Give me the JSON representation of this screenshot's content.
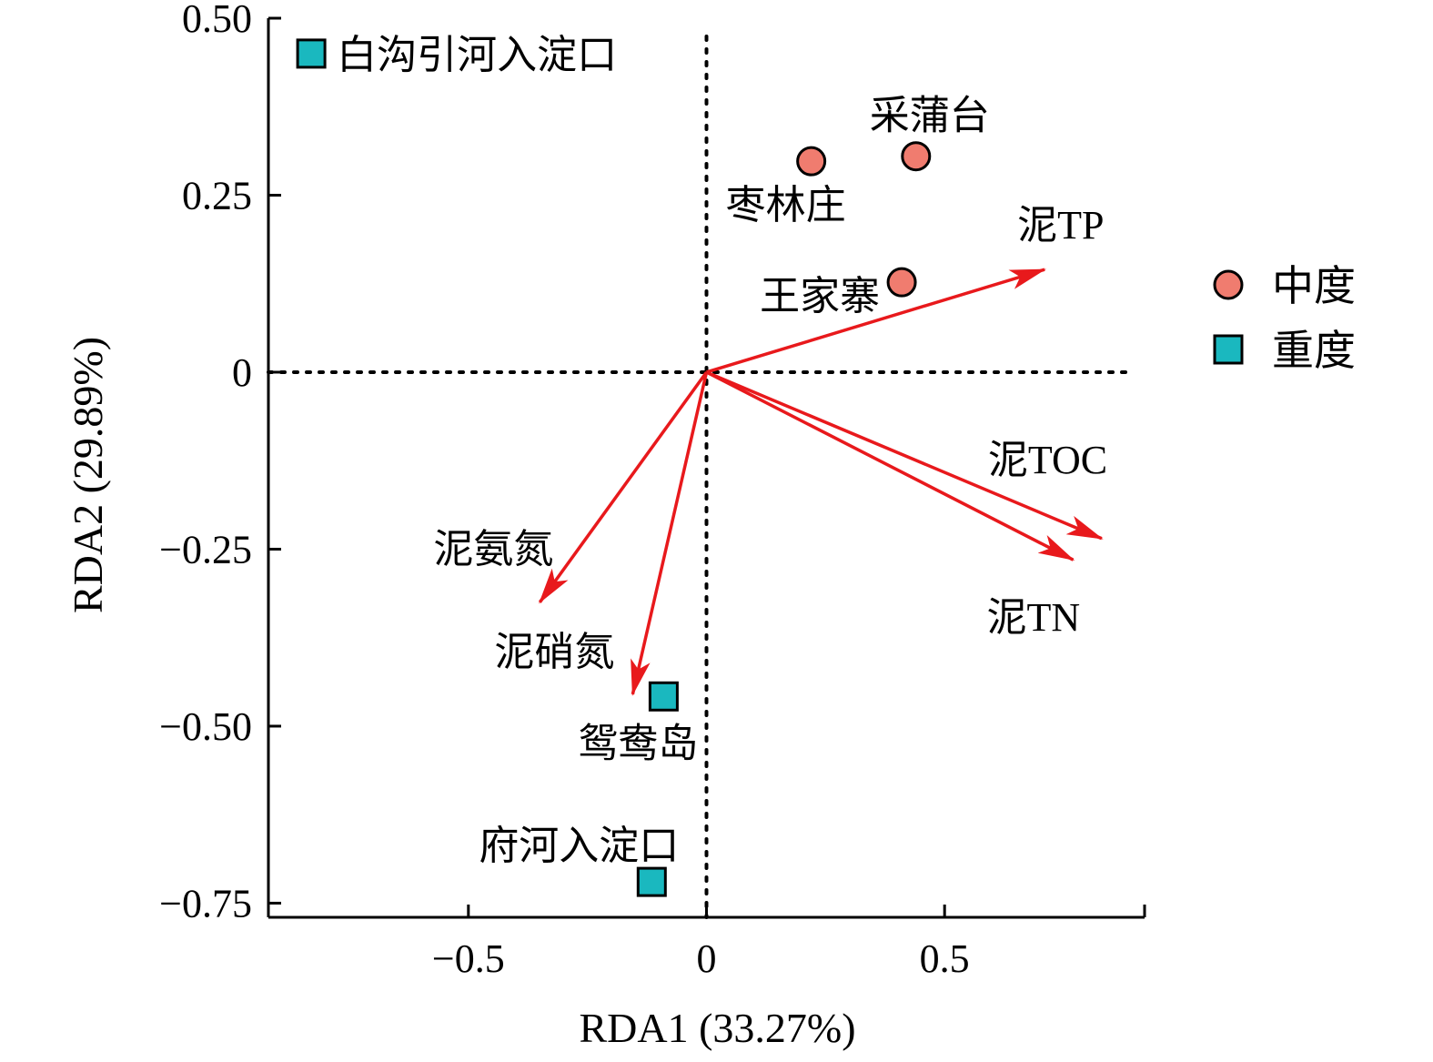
{
  "chart_data": {
    "type": "scatter",
    "subtype": "rda-biplot",
    "xlabel": "RDA1 (33.27%)",
    "ylabel": "RDA2 (29.89%)",
    "xlim": [
      -0.92,
      0.92
    ],
    "ylim": [
      -0.77,
      0.5
    ],
    "x_ticks": [
      {
        "value": -0.5,
        "label": "−0.5"
      },
      {
        "value": 0,
        "label": "0"
      },
      {
        "value": 0.5,
        "label": "0.5"
      }
    ],
    "y_ticks": [
      {
        "value": 0.5,
        "label": "0.50"
      },
      {
        "value": 0.25,
        "label": "0.25"
      },
      {
        "value": 0,
        "label": "0"
      },
      {
        "value": -0.25,
        "label": "−0.25"
      },
      {
        "value": -0.5,
        "label": "−0.50"
      },
      {
        "value": -0.75,
        "label": "−0.75"
      }
    ],
    "reference_lines": {
      "x": 0,
      "y": 0,
      "style": "dotted"
    },
    "groups": [
      {
        "name": "中度",
        "marker": "circle",
        "color": "#f07c6f"
      },
      {
        "name": "重度",
        "marker": "square",
        "color": "#1ab8bf"
      }
    ],
    "points": [
      {
        "label": "白沟引河入淀口",
        "group": "重度",
        "x": -0.83,
        "y": 0.45,
        "label_pos": "right"
      },
      {
        "label": "采蒲台",
        "group": "中度",
        "x": 0.44,
        "y": 0.305,
        "label_pos": "above"
      },
      {
        "label": "枣林庄",
        "group": "中度",
        "x": 0.22,
        "y": 0.298,
        "label_pos": "below"
      },
      {
        "label": "王家寨",
        "group": "中度",
        "x": 0.41,
        "y": 0.127,
        "label_pos": "left"
      },
      {
        "label": "鸳鸯岛",
        "group": "重度",
        "x": -0.09,
        "y": -0.458,
        "label_pos": "below"
      },
      {
        "label": "府河入淀口",
        "group": "重度",
        "x": -0.115,
        "y": -0.72,
        "label_pos": "above"
      }
    ],
    "vectors": [
      {
        "label": "泥TP",
        "x": 0.71,
        "y": 0.145
      },
      {
        "label": "泥TOC",
        "x": 0.83,
        "y": -0.235
      },
      {
        "label": "泥TN",
        "x": 0.77,
        "y": -0.265
      },
      {
        "label": "泥氨氮",
        "x": -0.35,
        "y": -0.325
      },
      {
        "label": "泥硝氮",
        "x": -0.155,
        "y": -0.455
      }
    ],
    "vector_color": "#e8191c",
    "legend": {
      "position": "right"
    }
  }
}
